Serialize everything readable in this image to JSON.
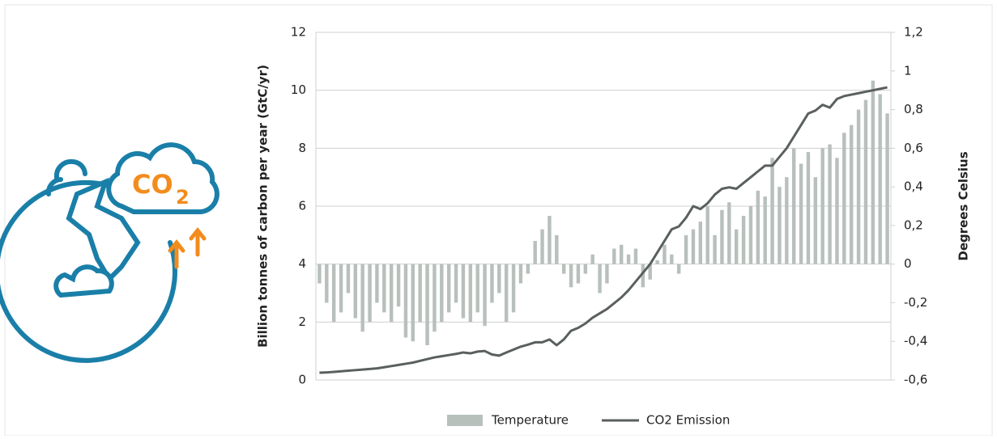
{
  "icon": {
    "label_main": "CO",
    "label_sub": "2"
  },
  "chart_data": {
    "type": "bar",
    "ylabel": "Billion tonnes of carbon per year (GtC/yr)",
    "y2label": "Degrees Celsius",
    "ylim": [
      0,
      12
    ],
    "yticks": [
      0,
      2,
      4,
      6,
      8,
      10,
      12
    ],
    "y2lim": [
      -0.6,
      1.2
    ],
    "y2ticks": [
      {
        "value": -0.6,
        "label": "-0,6"
      },
      {
        "value": -0.4,
        "label": "-0,4"
      },
      {
        "value": -0.2,
        "label": "-0,2"
      },
      0,
      {
        "value": 0.2,
        "label": "0,2"
      },
      {
        "value": 0.4,
        "label": "0,4"
      },
      {
        "value": 0.6,
        "label": "0,6"
      },
      {
        "value": 0.8,
        "label": "0,8"
      },
      1,
      {
        "value": 1.2,
        "label": "1,2"
      }
    ],
    "grid": true,
    "legend": "bottom",
    "series": [
      {
        "name": "Temperature",
        "type": "bar",
        "axis": "y2",
        "color": "#b8c0bc",
        "values": [
          -0.1,
          -0.2,
          -0.3,
          -0.25,
          -0.15,
          -0.28,
          -0.35,
          -0.3,
          -0.2,
          -0.25,
          -0.3,
          -0.22,
          -0.38,
          -0.4,
          -0.3,
          -0.42,
          -0.35,
          -0.3,
          -0.25,
          -0.2,
          -0.28,
          -0.3,
          -0.25,
          -0.32,
          -0.2,
          -0.15,
          -0.3,
          -0.25,
          -0.1,
          -0.05,
          0.12,
          0.18,
          0.25,
          0.15,
          -0.05,
          -0.12,
          -0.1,
          -0.05,
          0.05,
          -0.15,
          -0.1,
          0.08,
          0.1,
          0.05,
          0.08,
          -0.12,
          -0.08,
          0.02,
          0.1,
          0.05,
          -0.05,
          0.15,
          0.18,
          0.22,
          0.3,
          0.15,
          0.28,
          0.32,
          0.18,
          0.25,
          0.3,
          0.38,
          0.35,
          0.55,
          0.4,
          0.45,
          0.6,
          0.52,
          0.58,
          0.45,
          0.6,
          0.62,
          0.55,
          0.68,
          0.72,
          0.8,
          0.85,
          0.95,
          0.88,
          0.78
        ]
      },
      {
        "name": "CO2 Emission",
        "type": "line",
        "axis": "y",
        "color": "#5a5f5f",
        "values": [
          0.25,
          0.26,
          0.28,
          0.3,
          0.32,
          0.34,
          0.36,
          0.38,
          0.4,
          0.44,
          0.48,
          0.52,
          0.56,
          0.6,
          0.66,
          0.72,
          0.78,
          0.82,
          0.86,
          0.9,
          0.95,
          0.92,
          0.98,
          1.0,
          0.88,
          0.84,
          0.95,
          1.05,
          1.15,
          1.22,
          1.3,
          1.3,
          1.4,
          1.2,
          1.4,
          1.7,
          1.8,
          1.95,
          2.15,
          2.3,
          2.45,
          2.65,
          2.85,
          3.1,
          3.4,
          3.7,
          4.0,
          4.4,
          4.8,
          5.2,
          5.3,
          5.6,
          6.0,
          5.9,
          6.1,
          6.4,
          6.6,
          6.65,
          6.6,
          6.8,
          7.0,
          7.2,
          7.4,
          7.4,
          7.7,
          8.0,
          8.4,
          8.8,
          9.2,
          9.3,
          9.5,
          9.4,
          9.7,
          9.8,
          9.85,
          9.9,
          9.95,
          10.0,
          10.05,
          10.1
        ]
      }
    ]
  }
}
